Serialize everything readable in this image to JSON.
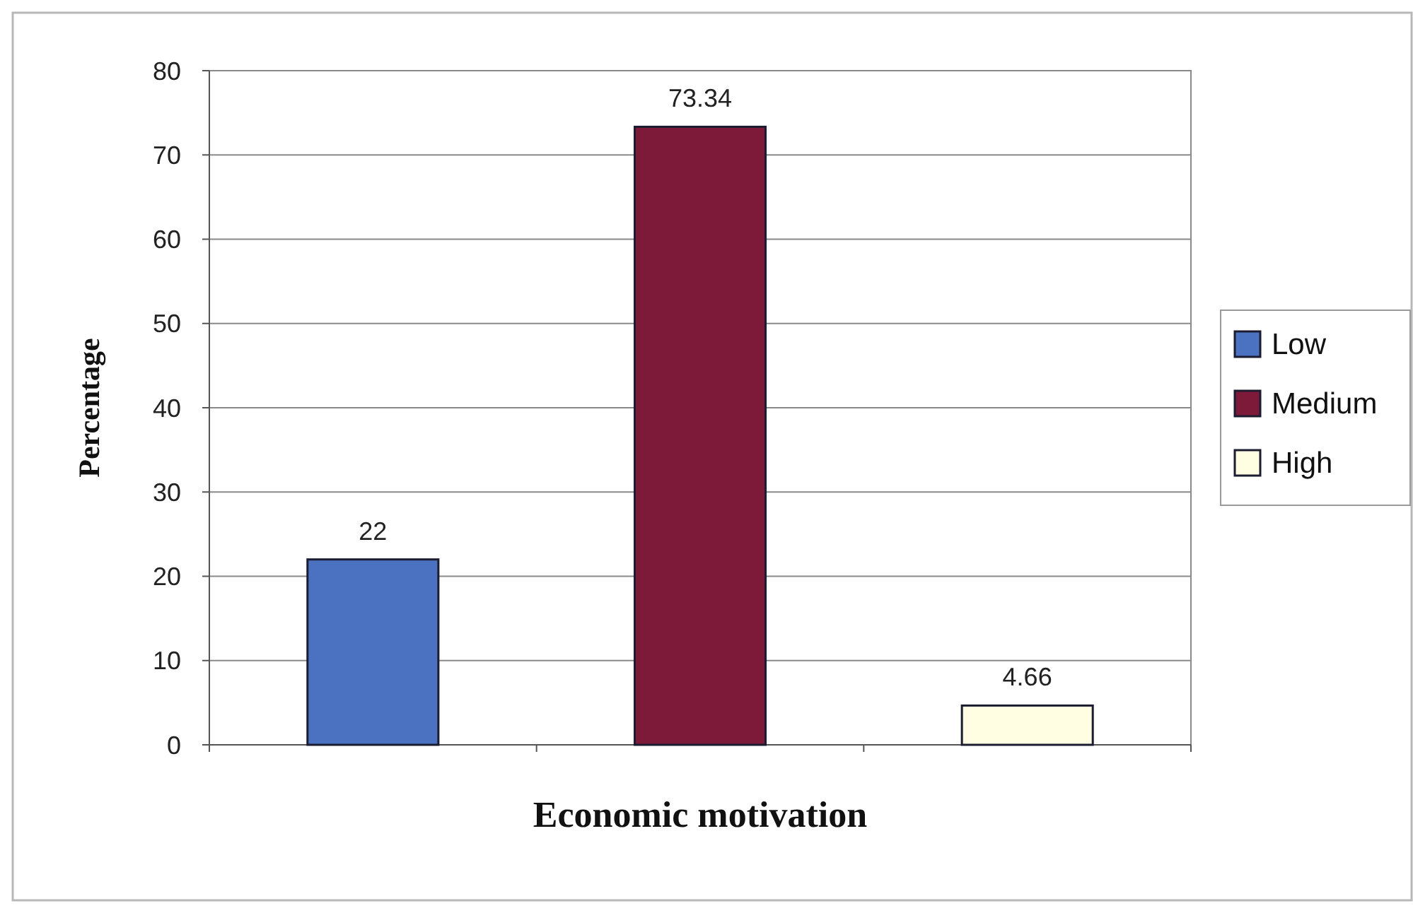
{
  "chart_data": {
    "type": "bar",
    "xlabel": "Economic motivation",
    "ylabel": "Percentage",
    "categories": [
      null,
      null,
      null
    ],
    "series": [
      {
        "name": "Low",
        "color": "#4a72c0",
        "values": [
          22,
          null,
          null
        ]
      },
      {
        "name": "Medium",
        "color": "#7d1a3a",
        "values": [
          null,
          73.34,
          null
        ]
      },
      {
        "name": "High",
        "color": "#fffde2",
        "values": [
          null,
          null,
          4.66
        ]
      }
    ],
    "ylim": [
      0,
      80
    ],
    "yticks": [
      0,
      10,
      20,
      30,
      40,
      50,
      60,
      70,
      80
    ],
    "grid": "y",
    "legend": "right",
    "data_labels": true
  }
}
